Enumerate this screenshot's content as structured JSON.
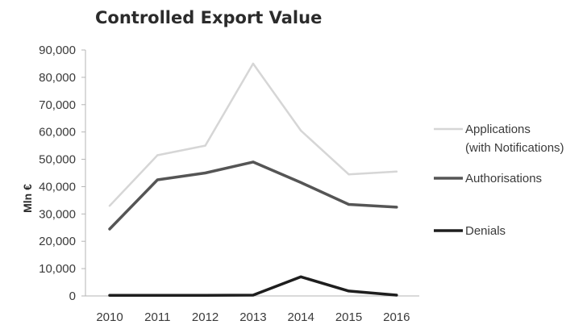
{
  "chart_data": {
    "type": "line",
    "title": "Controlled Export Value",
    "xlabel": "",
    "ylabel": "Mln €",
    "categories": [
      "2010",
      "2011",
      "2012",
      "2013",
      "2014",
      "2015",
      "2016"
    ],
    "ylim": [
      0,
      90000
    ],
    "yticks": [
      0,
      10000,
      20000,
      30000,
      40000,
      50000,
      60000,
      70000,
      80000,
      90000
    ],
    "ytick_labels": [
      "0",
      "10,000",
      "20,000",
      "30,000",
      "40,000",
      "50,000",
      "60,000",
      "70,000",
      "80,000",
      "90,000"
    ],
    "grid": false,
    "legend_position": "right",
    "series": [
      {
        "name": "Applications (with Notifications)",
        "legend_lines": [
          "Applications",
          "(with Notifications)"
        ],
        "color": "#d6d6d6",
        "values": [
          33000,
          51500,
          55000,
          85000,
          60500,
          44500,
          45500
        ]
      },
      {
        "name": "Authorisations",
        "legend_lines": [
          "Authorisations"
        ],
        "color": "#555555",
        "values": [
          24500,
          42500,
          45000,
          49000,
          41500,
          33500,
          32500
        ]
      },
      {
        "name": "Denials",
        "legend_lines": [
          "Denials"
        ],
        "color": "#1e1e1e",
        "values": [
          200,
          200,
          200,
          300,
          7000,
          1800,
          300
        ]
      }
    ]
  }
}
